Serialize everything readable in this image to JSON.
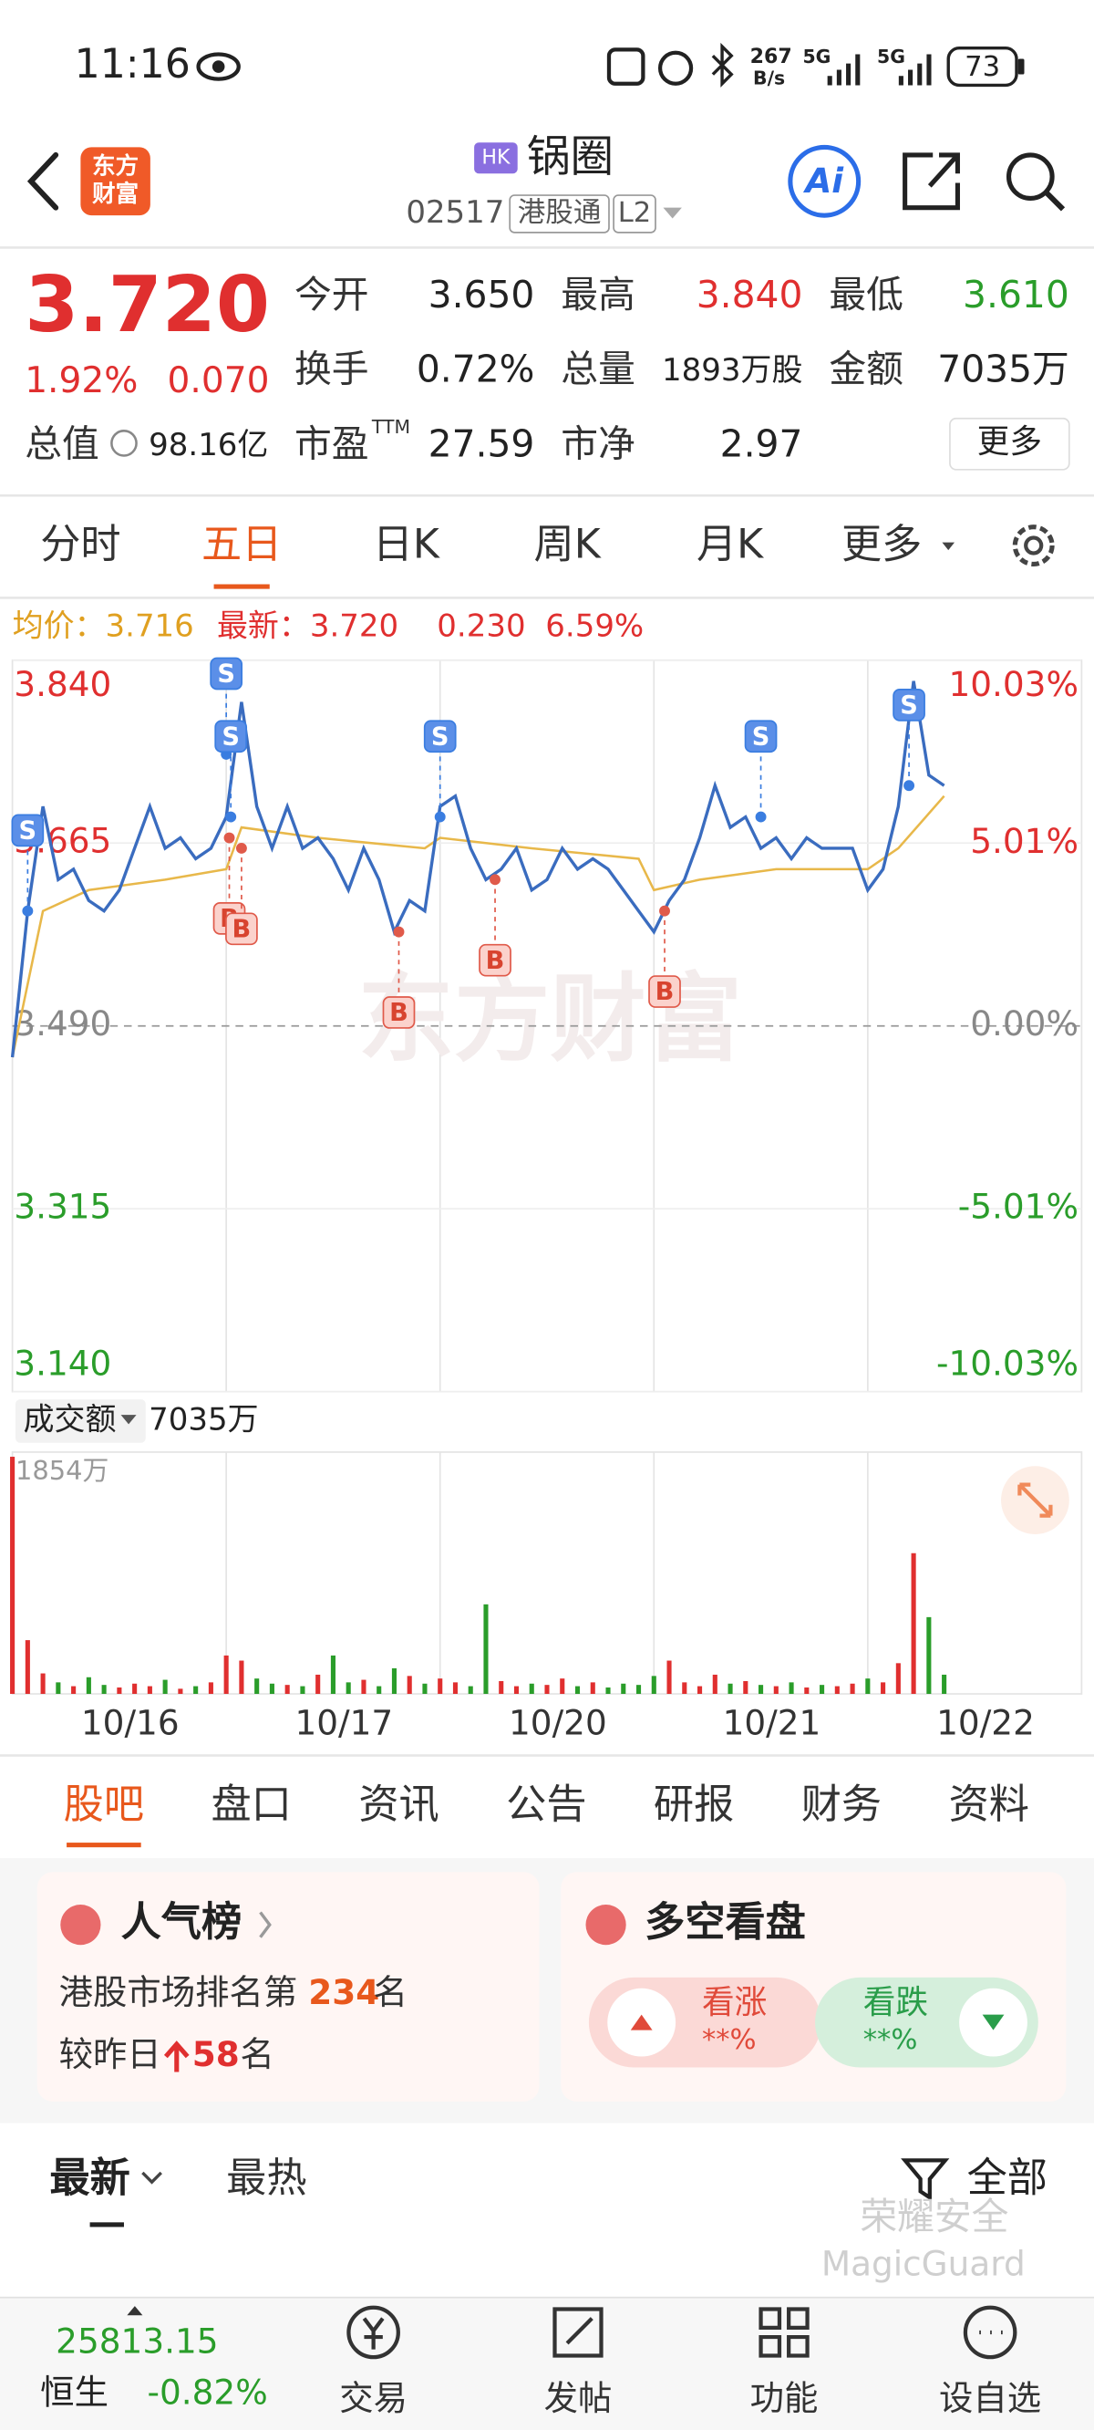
{
  "status_bar": {
    "time": "11:16",
    "net_speed": "267",
    "net_unit": "B/s",
    "signal1": "5G",
    "signal2": "5G",
    "battery": "73"
  },
  "header": {
    "logo": [
      "东方",
      "财富"
    ],
    "market": "HK",
    "name": "锅圈",
    "code": "02517",
    "tag": "港股通",
    "level": "L2",
    "ai": "Ai"
  },
  "quote": {
    "price": "3.720",
    "change_pct": "1.92%",
    "change": "0.070",
    "fields": [
      {
        "label": "今开",
        "value": "3.650"
      },
      {
        "label": "最高",
        "value": "3.840"
      },
      {
        "label": "最低",
        "value": "3.610"
      },
      {
        "label": "换手",
        "value": "0.72%"
      },
      {
        "label": "总量",
        "value": "1893万股"
      },
      {
        "label": "金额",
        "value": "7035万"
      },
      {
        "label": "总值",
        "value": "98.16亿"
      },
      {
        "label": "市盈",
        "sup": "TTM",
        "value": "27.59"
      },
      {
        "label": "市净",
        "value": "2.97"
      }
    ],
    "more": "更多"
  },
  "tabs": {
    "items": [
      "分时",
      "五日",
      "日K",
      "周K",
      "月K",
      "更多"
    ],
    "active": 1
  },
  "info": {
    "avg": "均价：3.716",
    "latest": "最新：3.720",
    "change": "0.230",
    "change_pct": "6.59%"
  },
  "chart_data": {
    "type": "line",
    "watermark": "东方财富",
    "price": {
      "color": "#3a6cbf",
      "values": [
        3.46,
        3.6,
        3.7,
        3.63,
        3.64,
        3.61,
        3.6,
        3.62,
        3.66,
        3.7,
        3.66,
        3.67,
        3.65,
        3.66,
        3.69,
        3.8,
        3.7,
        3.66,
        3.7,
        3.66,
        3.67,
        3.65,
        3.62,
        3.66,
        3.63,
        3.58,
        3.61,
        3.6,
        3.7,
        3.71,
        3.66,
        3.63,
        3.64,
        3.66,
        3.62,
        3.63,
        3.66,
        3.64,
        3.65,
        3.64,
        3.62,
        3.6,
        3.58,
        3.61,
        3.63,
        3.67,
        3.72,
        3.68,
        3.69,
        3.66,
        3.67,
        3.65,
        3.67,
        3.66,
        3.66,
        3.66,
        3.62,
        3.64,
        3.7,
        3.82,
        3.73,
        3.72
      ]
    },
    "avg": {
      "color": "#e8b84a",
      "x": [
        0,
        2,
        5,
        10,
        14,
        15,
        20,
        27,
        28,
        34,
        41,
        42,
        45,
        50,
        55,
        56,
        58,
        61
      ],
      "values": [
        3.46,
        3.6,
        3.62,
        3.63,
        3.64,
        3.68,
        3.67,
        3.66,
        3.67,
        3.66,
        3.65,
        3.62,
        3.63,
        3.64,
        3.64,
        3.64,
        3.66,
        3.71
      ]
    },
    "trades": [
      {
        "x": 1,
        "price": 3.6,
        "side": "S"
      },
      {
        "x": 14,
        "price": 3.75,
        "side": "S"
      },
      {
        "x": 14.3,
        "price": 3.69,
        "side": "S"
      },
      {
        "x": 28,
        "price": 3.69,
        "side": "S"
      },
      {
        "x": 49,
        "price": 3.69,
        "side": "S"
      },
      {
        "x": 58.7,
        "price": 3.72,
        "side": "S"
      },
      {
        "x": 14.2,
        "price": 3.67,
        "side": "B"
      },
      {
        "x": 15,
        "price": 3.66,
        "side": "B"
      },
      {
        "x": 25.3,
        "price": 3.58,
        "side": "B"
      },
      {
        "x": 31.6,
        "price": 3.63,
        "side": "B"
      },
      {
        "x": 42.7,
        "price": 3.6,
        "side": "B"
      }
    ],
    "xlim": [
      0,
      70
    ],
    "ylim": [
      3.14,
      3.84
    ],
    "yticks": [
      {
        "value": 3.84,
        "label": "3.840"
      },
      {
        "value": 3.665,
        "label": "3.665"
      },
      {
        "value": 3.49,
        "label": "3.490"
      },
      {
        "value": 3.315,
        "label": "3.315"
      },
      {
        "value": 3.14,
        "label": "3.140"
      }
    ],
    "y2lim": [
      -10.03,
      10.03
    ],
    "y2ticks": [
      {
        "value": 10.03,
        "label": "10.03%"
      },
      {
        "value": 5.01,
        "label": "5.01%"
      },
      {
        "value": 0,
        "label": "0.00%"
      },
      {
        "value": -5.01,
        "label": "-5.01%"
      },
      {
        "value": -10.03,
        "label": "-10.03%"
      }
    ],
    "dates": [
      "10/16",
      "10/17",
      "10/20",
      "10/21",
      "10/22"
    ],
    "volume": {
      "label": "成交额",
      "total": "7035万",
      "max_label": "1854万",
      "ylim": [
        0,
        1854
      ],
      "values": [
        1854,
        420,
        160,
        90,
        60,
        130,
        70,
        50,
        80,
        60,
        110,
        40,
        60,
        90,
        300,
        260,
        120,
        80,
        70,
        60,
        150,
        300,
        90,
        110,
        60,
        200,
        140,
        80,
        120,
        90,
        60,
        700,
        100,
        60,
        80,
        70,
        120,
        60,
        90,
        50,
        80,
        70,
        140,
        260,
        90,
        60,
        150,
        80,
        100,
        70,
        60,
        90,
        50,
        70,
        60,
        80,
        120,
        90,
        240,
        1100,
        600,
        150
      ]
    },
    "color_up": "#e02f2f",
    "color_down": "#2a9d2a",
    "grid": true
  },
  "bottom_tabs": {
    "items": [
      "股吧",
      "盘口",
      "资讯",
      "公告",
      "研报",
      "财务",
      "资料"
    ],
    "active": 0
  },
  "popularity": {
    "title": "人气榜",
    "rank_prefix": "港股市场排名第",
    "rank": "234",
    "unit": "名",
    "change_prefix": "较昨日",
    "change": "58",
    "unit2": "名"
  },
  "sentiment": {
    "title": "多空看盘",
    "bull": "看涨",
    "bull_pct": "**%",
    "bear": "看跌",
    "bear_pct": "**%"
  },
  "feed_tabs": {
    "items": [
      "最新",
      "最热"
    ],
    "filter": "全部"
  },
  "overlay": {
    "line1": "荣耀安全",
    "line2": "MagicGuard"
  },
  "bottom_nav": {
    "index_value": "25813.15",
    "index_name": "恒生",
    "index_change": "-0.82%",
    "items": [
      "交易",
      "发帖",
      "功能",
      "设自选"
    ]
  }
}
